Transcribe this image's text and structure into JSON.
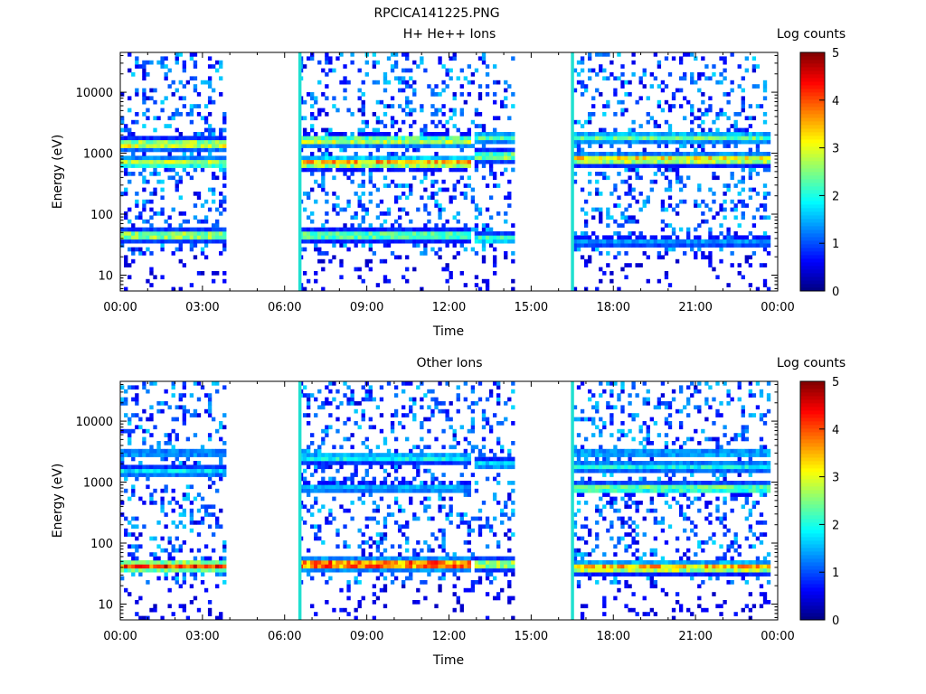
{
  "page_title": "RPCICA141225.PNG",
  "colors": {
    "background": "#ffffff",
    "calibration_line": "#20e0d0",
    "colormap": [
      "#00007f",
      "#0000ff",
      "#0080ff",
      "#00ffff",
      "#80ff80",
      "#ffff00",
      "#ff8000",
      "#ff0000",
      "#7f0000"
    ]
  },
  "chart_data": [
    {
      "type": "heatmap",
      "title": "H+ He++ Ions",
      "xlabel": "Time",
      "ylabel": "Energy (eV)",
      "colorbar_label": "Log counts",
      "x_ticks": [
        "00:00",
        "03:00",
        "06:00",
        "09:00",
        "12:00",
        "15:00",
        "18:00",
        "21:00",
        "00:00"
      ],
      "x_range_hours": [
        0,
        24
      ],
      "y_scale": "log",
      "y_ticks": [
        "10",
        "100",
        "1000",
        "10000"
      ],
      "y_range_eV": [
        5.5,
        45000
      ],
      "colorbar_ticks": [
        "0",
        "1",
        "2",
        "3",
        "4",
        "5"
      ],
      "colorbar_range": [
        0,
        5
      ],
      "data_intervals_hours": [
        [
          0.0,
          3.9
        ],
        [
          6.6,
          14.4
        ],
        [
          16.5,
          23.7
        ]
      ],
      "calibration_lines_hours": [
        6.55,
        16.5
      ],
      "bands": [
        {
          "start": 0.0,
          "end": 3.9,
          "energy_eV": 45,
          "level": 3.0
        },
        {
          "start": 0.0,
          "end": 3.9,
          "energy_eV": 1400,
          "level": 3.2
        },
        {
          "start": 0.0,
          "end": 3.9,
          "energy_eV": 700,
          "level": 2.8
        },
        {
          "start": 6.6,
          "end": 12.8,
          "energy_eV": 45,
          "level": 2.6
        },
        {
          "start": 6.6,
          "end": 12.8,
          "energy_eV": 1600,
          "level": 3.0
        },
        {
          "start": 6.6,
          "end": 12.8,
          "energy_eV": 700,
          "level": 3.6
        },
        {
          "start": 12.9,
          "end": 14.4,
          "energy_eV": 40,
          "level": 2.2
        },
        {
          "start": 12.9,
          "end": 14.4,
          "energy_eV": 1800,
          "level": 2.3
        },
        {
          "start": 12.9,
          "end": 14.4,
          "energy_eV": 900,
          "level": 2.8
        },
        {
          "start": 16.5,
          "end": 23.7,
          "energy_eV": 35,
          "level": 1.4
        },
        {
          "start": 16.5,
          "end": 23.7,
          "energy_eV": 1800,
          "level": 2.4
        },
        {
          "start": 16.5,
          "end": 23.7,
          "energy_eV": 800,
          "level": 3.4
        }
      ]
    },
    {
      "type": "heatmap",
      "title": "Other Ions",
      "xlabel": "Time",
      "ylabel": "Energy (eV)",
      "colorbar_label": "Log counts",
      "x_ticks": [
        "00:00",
        "03:00",
        "06:00",
        "09:00",
        "12:00",
        "15:00",
        "18:00",
        "21:00",
        "00:00"
      ],
      "x_range_hours": [
        0,
        24
      ],
      "y_scale": "log",
      "y_ticks": [
        "10",
        "100",
        "1000",
        "10000"
      ],
      "y_range_eV": [
        5.5,
        45000
      ],
      "colorbar_ticks": [
        "0",
        "1",
        "2",
        "3",
        "4",
        "5"
      ],
      "colorbar_range": [
        0,
        5
      ],
      "data_intervals_hours": [
        [
          0.0,
          3.9
        ],
        [
          6.6,
          14.4
        ],
        [
          16.5,
          23.7
        ]
      ],
      "calibration_lines_hours": [
        6.55,
        16.5
      ],
      "bands": [
        {
          "start": 0.0,
          "end": 3.9,
          "energy_eV": 42,
          "level": 4.2
        },
        {
          "start": 0.0,
          "end": 3.9,
          "energy_eV": 1500,
          "level": 1.8
        },
        {
          "start": 0.0,
          "end": 3.9,
          "energy_eV": 3000,
          "level": 1.5
        },
        {
          "start": 6.6,
          "end": 12.8,
          "energy_eV": 45,
          "level": 4.4
        },
        {
          "start": 6.6,
          "end": 12.8,
          "energy_eV": 2500,
          "level": 2.0
        },
        {
          "start": 6.6,
          "end": 12.8,
          "energy_eV": 800,
          "level": 1.6
        },
        {
          "start": 12.9,
          "end": 14.4,
          "energy_eV": 45,
          "level": 3.0
        },
        {
          "start": 12.9,
          "end": 14.4,
          "energy_eV": 2000,
          "level": 1.8
        },
        {
          "start": 16.5,
          "end": 23.7,
          "energy_eV": 40,
          "level": 3.6
        },
        {
          "start": 16.5,
          "end": 23.7,
          "energy_eV": 3000,
          "level": 1.6
        },
        {
          "start": 16.5,
          "end": 23.7,
          "energy_eV": 1800,
          "level": 2.0
        },
        {
          "start": 16.5,
          "end": 23.7,
          "energy_eV": 800,
          "level": 2.6
        }
      ]
    }
  ]
}
